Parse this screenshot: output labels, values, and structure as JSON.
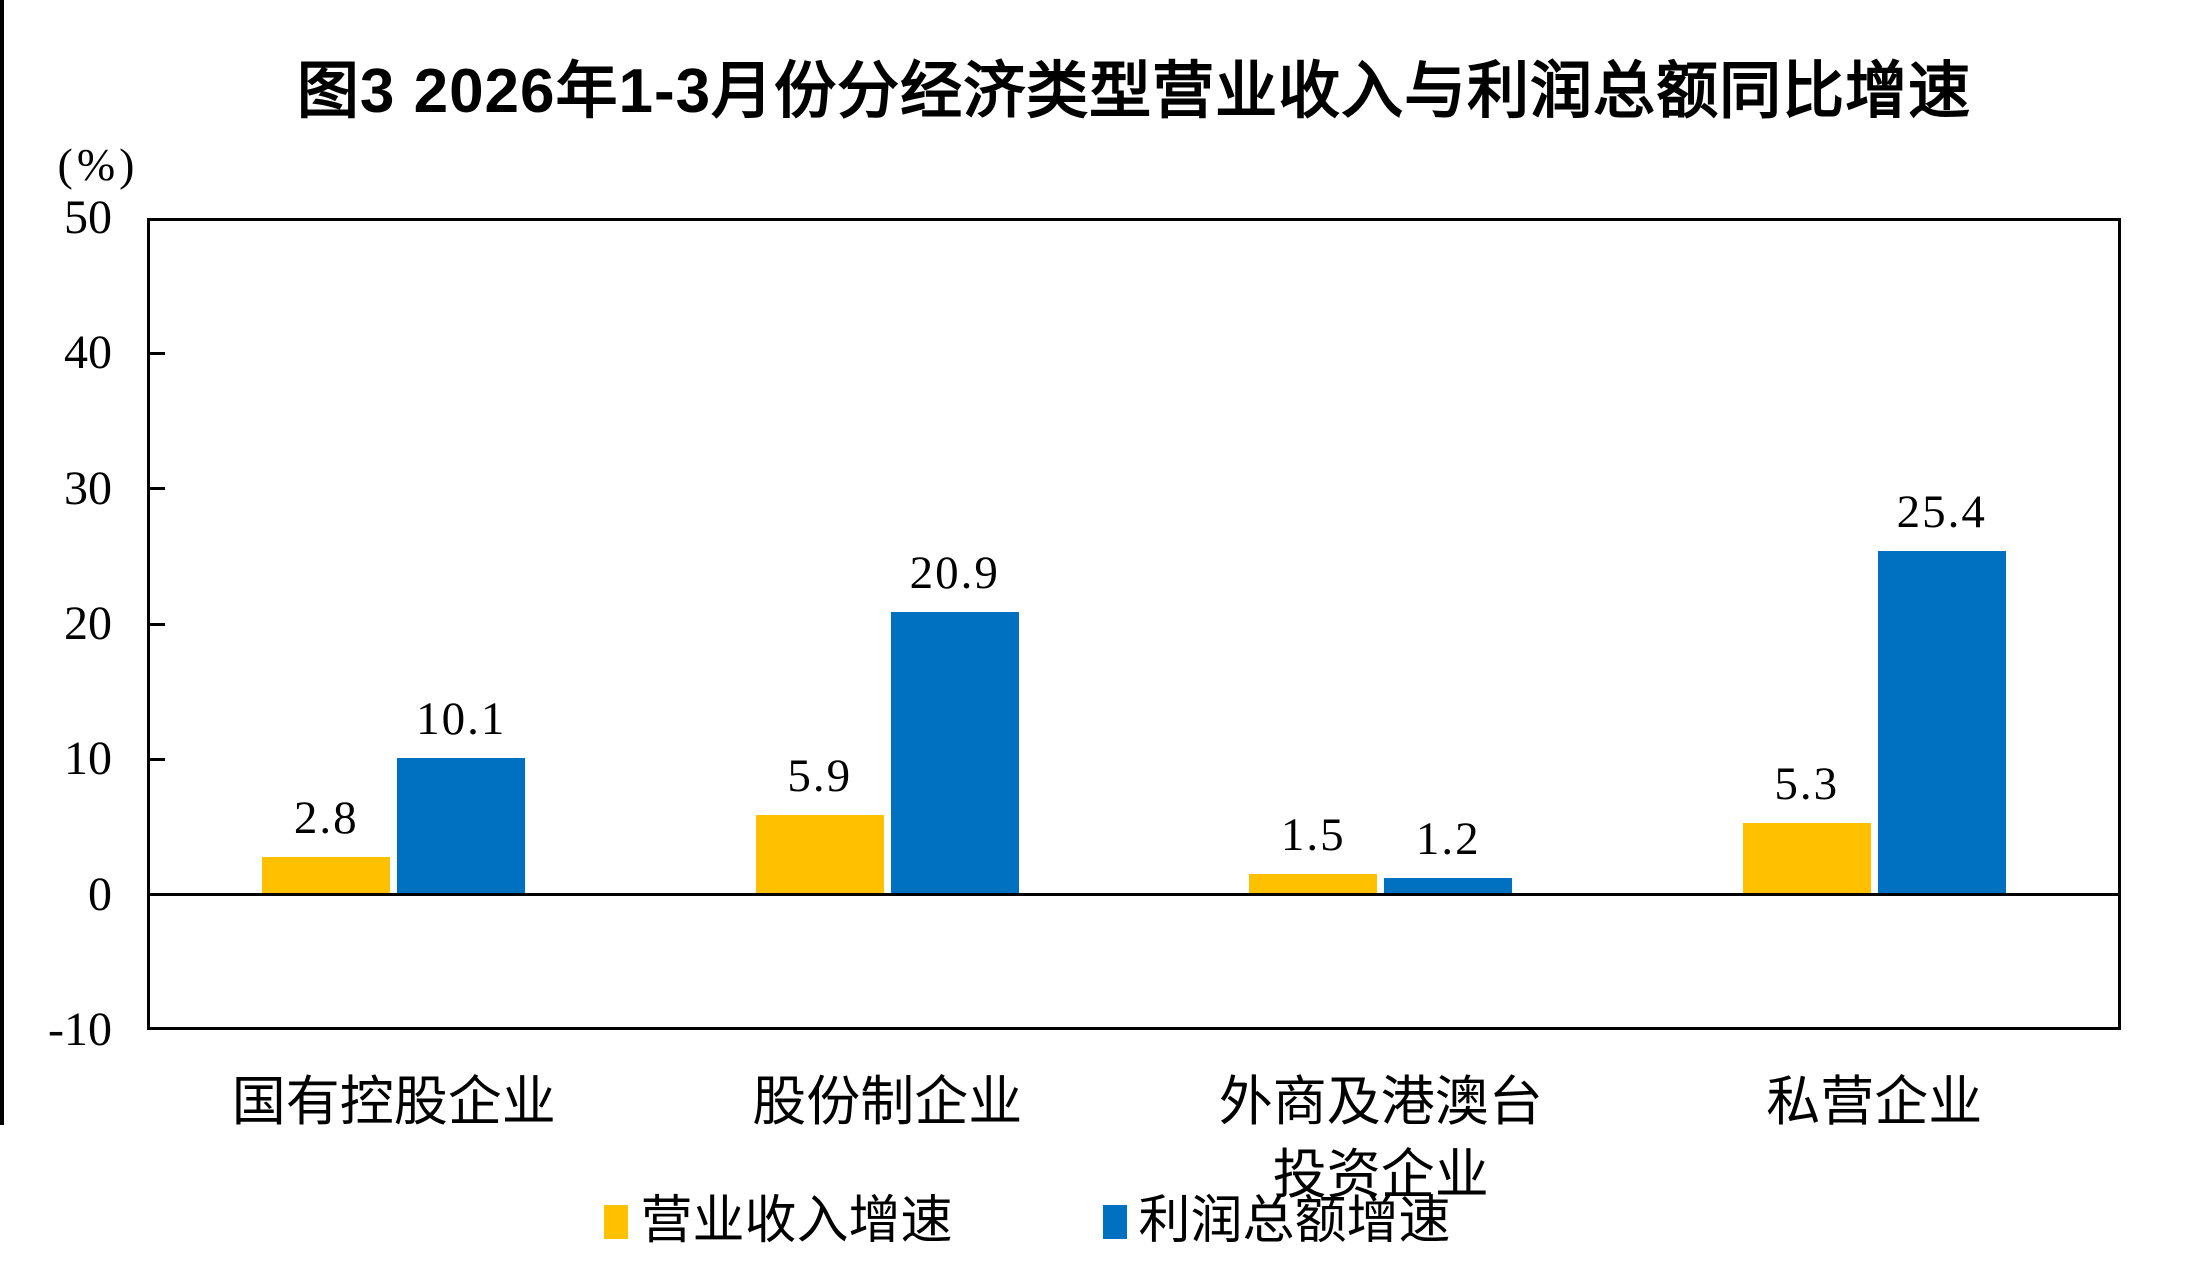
{
  "chart_data": {
    "type": "bar",
    "title": "图3 2026年1-3月份分经济类型营业收入与利润总额同比增速",
    "unit_label": "(%)",
    "categories": [
      "国有控股企业",
      "股份制企业",
      "外商及港澳台\n投资企业",
      "私营企业"
    ],
    "series": [
      {
        "name": "营业收入增速",
        "color": "#FFC000",
        "values": [
          2.8,
          5.9,
          1.5,
          5.3
        ]
      },
      {
        "name": "利润总额增速",
        "color": "#0070C0",
        "values": [
          10.1,
          20.9,
          1.2,
          25.4
        ]
      }
    ],
    "data_labels": [
      "2.8",
      "5.9",
      "1.5",
      "5.3",
      "10.1",
      "20.9",
      "1.2",
      "25.4"
    ],
    "ylim": [
      -10,
      50
    ],
    "yticks": [
      50,
      40,
      30,
      20,
      10,
      0,
      -10
    ],
    "ytick_interval": 10,
    "grid": false,
    "legend_position": "bottom",
    "axis_color": "#000000",
    "background_color": "#FFFFFF"
  }
}
